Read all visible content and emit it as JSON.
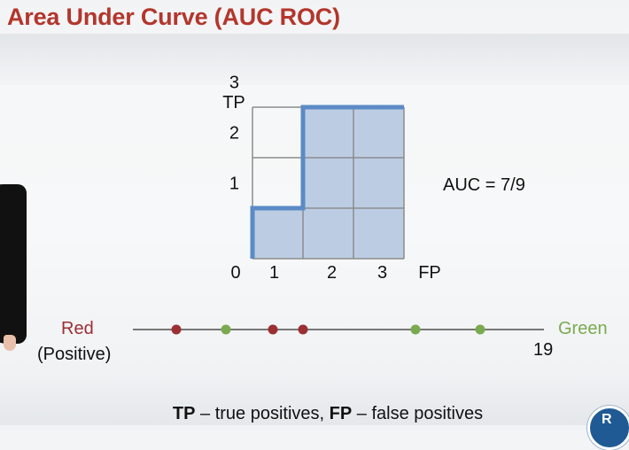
{
  "slide": {
    "title": "Area Under Curve (AUC ROC)",
    "auc_label": "AUC = 7/9",
    "caption": {
      "tp": "TP",
      "tp_desc": " – true positives, ",
      "fp": "FP",
      "fp_desc": " – false positives"
    },
    "number_line": {
      "left_label": "Red",
      "left_sublabel": "(Positive)",
      "right_label": "Green",
      "end_value": "19",
      "points": [
        "red",
        "green",
        "red",
        "red",
        "green",
        "green"
      ]
    },
    "logo_letter": "R"
  },
  "chart_data": {
    "type": "line",
    "title": "",
    "xlabel": "FP",
    "ylabel": "TP",
    "x_ticks": [
      "0",
      "1",
      "2",
      "3"
    ],
    "y_ticks": [
      "1",
      "2",
      "3"
    ],
    "xlim": [
      0,
      3
    ],
    "ylim": [
      0,
      3
    ],
    "grid": true,
    "series": [
      {
        "x": [
          0,
          0,
          1,
          1,
          2,
          3
        ],
        "y": [
          0,
          1,
          1,
          3,
          3,
          3
        ]
      }
    ],
    "shaded_cells": [
      [
        0,
        0
      ],
      [
        1,
        0
      ],
      [
        1,
        1
      ],
      [
        1,
        2
      ],
      [
        2,
        0
      ],
      [
        2,
        1
      ],
      [
        2,
        2
      ]
    ],
    "colors": {
      "curve": "#5b8ac6",
      "fill": "#bccde3",
      "grid": "#8c8c8c"
    }
  },
  "colors": {
    "title": "#b3362c",
    "red": "#9c2f33",
    "green": "#7aaa4f",
    "line": "#777777"
  }
}
